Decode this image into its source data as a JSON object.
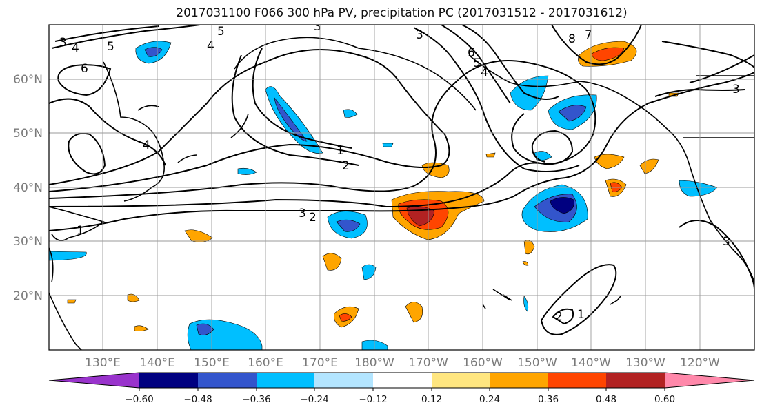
{
  "title": "2017031100 F066 300 hPa PV, precipitation PC (2017031512 - 2017031612)",
  "map": {
    "lon_labels": [
      "130°E",
      "140°E",
      "150°E",
      "160°E",
      "170°E",
      "180°W",
      "170°W",
      "160°W",
      "150°W",
      "140°W",
      "130°W",
      "120°W"
    ],
    "lat_labels": [
      "60°N",
      "50°N",
      "40°N",
      "30°N",
      "20°N"
    ],
    "contour_labels": [
      "3",
      "4",
      "5",
      "6",
      "4",
      "5",
      "3",
      "3",
      "8",
      "7",
      "6",
      "5",
      "4",
      "3",
      "1",
      "2",
      "3",
      "2",
      "1",
      "4",
      "2",
      "1",
      "3"
    ]
  },
  "colorbar": {
    "ticks": [
      "−0.60",
      "−0.48",
      "−0.36",
      "−0.24",
      "−0.12",
      "0.12",
      "0.24",
      "0.36",
      "0.48",
      "0.60"
    ],
    "colors": [
      "#9933cc",
      "#000080",
      "#3355cc",
      "#00bfff",
      "#b3e5ff",
      "#ffffff",
      "#ffe680",
      "#ffa500",
      "#ff4500",
      "#b22222",
      "#ff88aa"
    ]
  }
}
